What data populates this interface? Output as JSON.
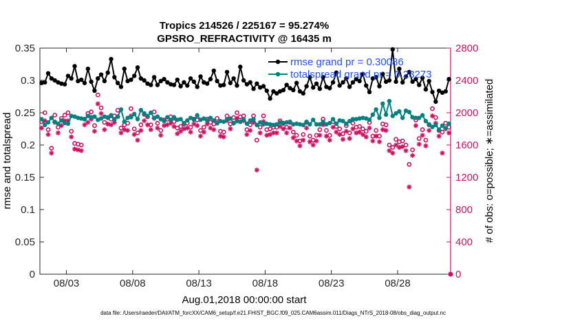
{
  "chart_data": {
    "type": "line",
    "title_line1": "Tropics 214526 / 225167 = 95.274%",
    "title_line2": "GPSRO_REFRACTIVITY @ 16435 m",
    "xlabel": "Aug.01,2018 00:00:00 start",
    "ylabel_left": "rmse and totalspread",
    "ylabel_right": "# of obs: o=possible; ∗=assimilated",
    "footnote": "data file: /Users/raeder/DAI/ATM_forcXX/CAM6_setup/f.e21.FHIST_BGC.f09_025.CAM6assim.011/Diags_NTrS_2018-08/obs_diag_output.nc",
    "x_ticks": [
      "08/03",
      "08/08",
      "08/13",
      "08/18",
      "08/23",
      "08/28"
    ],
    "x_tick_days": [
      3,
      8,
      13,
      18,
      23,
      28
    ],
    "xlim_days": [
      1.0,
      32.0
    ],
    "ylim_left": [
      0,
      0.35
    ],
    "y_ticks_left": [
      "0",
      "0.05",
      "0.1",
      "0.15",
      "0.2",
      "0.25",
      "0.3",
      "0.35"
    ],
    "y_tick_values_left": [
      0,
      0.05,
      0.1,
      0.15,
      0.2,
      0.25,
      0.3,
      0.35
    ],
    "ylim_right": [
      0,
      2800
    ],
    "y_ticks_right": [
      "0",
      "400",
      "800",
      "1200",
      "1600",
      "2000",
      "2400",
      "2800"
    ],
    "y_tick_values_right": [
      0,
      400,
      800,
      1200,
      1600,
      2000,
      2400,
      2800
    ],
    "legend": {
      "placement": "top-right",
      "entries": [
        "rmse grand pr = 0.30086",
        "totalspread grand pr = 0.23273"
      ]
    },
    "colors": {
      "rmse": "#000000",
      "spread": "#008080",
      "obs": "#cc1060",
      "legend_text": "#1f4fff",
      "axis": "#262626"
    },
    "series": [
      {
        "name": "rmse",
        "axis": "left",
        "x": [
          1.125,
          1.375,
          1.625,
          1.875,
          2.125,
          2.375,
          2.625,
          2.875,
          3.125,
          3.375,
          3.625,
          3.875,
          4.125,
          4.375,
          4.625,
          4.875,
          5.125,
          5.375,
          5.625,
          5.875,
          6.125,
          6.375,
          6.625,
          6.875,
          7.125,
          7.375,
          7.625,
          7.875,
          8.125,
          8.375,
          8.625,
          8.875,
          9.125,
          9.375,
          9.625,
          9.875,
          10.125,
          10.375,
          10.625,
          10.875,
          11.125,
          11.375,
          11.625,
          11.875,
          12.125,
          12.375,
          12.625,
          12.875,
          13.125,
          13.375,
          13.625,
          13.875,
          14.125,
          14.375,
          14.625,
          14.875,
          15.125,
          15.375,
          15.625,
          15.875,
          16.125,
          16.375,
          16.625,
          16.875,
          17.125,
          17.375,
          17.625,
          17.875,
          18.125,
          18.375,
          18.625,
          18.875,
          19.125,
          19.375,
          19.625,
          19.875,
          20.125,
          20.375,
          20.625,
          20.875,
          21.125,
          21.375,
          21.625,
          21.875,
          22.125,
          22.375,
          22.625,
          22.875,
          23.125,
          23.375,
          23.625,
          23.875,
          24.125,
          24.375,
          24.625,
          24.875,
          25.125,
          25.375,
          25.625,
          25.875,
          26.125,
          26.375,
          26.625,
          26.875,
          27.125,
          27.375,
          27.625,
          27.875,
          28.125,
          28.375,
          28.625,
          28.875,
          29.125,
          29.375,
          29.625,
          29.875,
          30.125,
          30.375,
          30.625,
          30.875,
          31.125,
          31.375,
          31.625,
          31.875
        ],
        "values": [
          0.296,
          0.297,
          0.311,
          0.303,
          0.3,
          0.297,
          0.295,
          0.294,
          0.307,
          0.303,
          0.322,
          0.299,
          0.301,
          0.296,
          0.318,
          0.298,
          0.284,
          0.303,
          0.309,
          0.299,
          0.312,
          0.333,
          0.305,
          0.296,
          0.29,
          0.318,
          0.299,
          0.301,
          0.307,
          0.32,
          0.303,
          0.3,
          0.295,
          0.293,
          0.305,
          0.293,
          0.299,
          0.302,
          0.297,
          0.294,
          0.293,
          0.301,
          0.291,
          0.297,
          0.292,
          0.303,
          0.298,
          0.29,
          0.306,
          0.297,
          0.295,
          0.302,
          0.315,
          0.299,
          0.292,
          0.293,
          0.313,
          0.296,
          0.303,
          0.292,
          0.321,
          0.3,
          0.294,
          0.297,
          0.287,
          0.295,
          0.289,
          0.291,
          0.284,
          0.272,
          0.283,
          0.28,
          0.283,
          0.285,
          0.293,
          0.288,
          0.285,
          0.296,
          0.283,
          0.28,
          0.291,
          0.305,
          0.289,
          0.295,
          0.287,
          0.305,
          0.29,
          0.288,
          0.297,
          0.312,
          0.292,
          0.297,
          0.303,
          0.29,
          0.297,
          0.302,
          0.299,
          0.31,
          0.292,
          0.282,
          0.303,
          0.305,
          0.291,
          0.31,
          0.298,
          0.3,
          0.348,
          0.298,
          0.318,
          0.297,
          0.306,
          0.313,
          0.298,
          0.302,
          0.293,
          0.304,
          0.286,
          0.299,
          0.282,
          0.267,
          0.284,
          0.281,
          0.283,
          0.302
        ]
      },
      {
        "name": "totalspread",
        "axis": "left",
        "x": [
          1.125,
          1.375,
          1.625,
          1.875,
          2.125,
          2.375,
          2.625,
          2.875,
          3.125,
          3.375,
          3.625,
          3.875,
          4.125,
          4.375,
          4.625,
          4.875,
          5.125,
          5.375,
          5.625,
          5.875,
          6.125,
          6.375,
          6.625,
          6.875,
          7.125,
          7.375,
          7.625,
          7.875,
          8.125,
          8.375,
          8.625,
          8.875,
          9.125,
          9.375,
          9.625,
          9.875,
          10.125,
          10.375,
          10.625,
          10.875,
          11.125,
          11.375,
          11.625,
          11.875,
          12.125,
          12.375,
          12.625,
          12.875,
          13.125,
          13.375,
          13.625,
          13.875,
          14.125,
          14.375,
          14.625,
          14.875,
          15.125,
          15.375,
          15.625,
          15.875,
          16.125,
          16.375,
          16.625,
          16.875,
          17.125,
          17.375,
          17.625,
          17.875,
          18.125,
          18.375,
          18.625,
          18.875,
          19.125,
          19.375,
          19.625,
          19.875,
          20.125,
          20.375,
          20.625,
          20.875,
          21.125,
          21.375,
          21.625,
          21.875,
          22.125,
          22.375,
          22.625,
          22.875,
          23.125,
          23.375,
          23.625,
          23.875,
          24.125,
          24.375,
          24.625,
          24.875,
          25.125,
          25.375,
          25.625,
          25.875,
          26.125,
          26.375,
          26.625,
          26.875,
          27.125,
          27.375,
          27.625,
          27.875,
          28.125,
          28.375,
          28.625,
          28.875,
          29.125,
          29.375,
          29.625,
          29.875,
          30.125,
          30.375,
          30.625,
          30.875,
          31.125,
          31.375,
          31.625,
          31.875
        ],
        "values": [
          0.24,
          0.231,
          0.235,
          0.242,
          0.236,
          0.233,
          0.238,
          0.234,
          0.233,
          0.245,
          0.244,
          0.242,
          0.241,
          0.24,
          0.245,
          0.243,
          0.244,
          0.239,
          0.241,
          0.244,
          0.242,
          0.246,
          0.239,
          0.244,
          0.255,
          0.236,
          0.242,
          0.243,
          0.248,
          0.24,
          0.254,
          0.249,
          0.245,
          0.25,
          0.242,
          0.244,
          0.24,
          0.237,
          0.243,
          0.239,
          0.243,
          0.239,
          0.24,
          0.234,
          0.238,
          0.242,
          0.239,
          0.246,
          0.239,
          0.241,
          0.238,
          0.242,
          0.238,
          0.234,
          0.237,
          0.236,
          0.24,
          0.241,
          0.234,
          0.237,
          0.236,
          0.24,
          0.233,
          0.238,
          0.24,
          0.231,
          0.235,
          0.232,
          0.233,
          0.232,
          0.231,
          0.232,
          0.235,
          0.233,
          0.235,
          0.236,
          0.232,
          0.233,
          0.232,
          0.231,
          0.236,
          0.232,
          0.239,
          0.232,
          0.232,
          0.236,
          0.232,
          0.234,
          0.24,
          0.233,
          0.238,
          0.237,
          0.233,
          0.237,
          0.24,
          0.24,
          0.241,
          0.242,
          0.241,
          0.239,
          0.247,
          0.255,
          0.242,
          0.264,
          0.247,
          0.268,
          0.245,
          0.249,
          0.252,
          0.242,
          0.253,
          0.251,
          0.243,
          0.242,
          0.242,
          0.246,
          0.237,
          0.232,
          0.228,
          0.231,
          0.224,
          0.23,
          0.226,
          0.233
        ]
      },
      {
        "name": "obs possible",
        "axis": "right",
        "marker": "o",
        "x": [
          1.125,
          1.375,
          1.625,
          1.875,
          2.125,
          2.375,
          2.625,
          2.875,
          3.125,
          3.375,
          3.625,
          3.875,
          4.125,
          4.375,
          4.625,
          4.875,
          5.125,
          5.375,
          5.625,
          5.875,
          6.125,
          6.375,
          6.625,
          6.875,
          7.125,
          7.375,
          7.625,
          7.875,
          8.125,
          8.375,
          8.625,
          8.875,
          9.125,
          9.375,
          9.625,
          9.875,
          10.125,
          10.375,
          10.625,
          10.875,
          11.125,
          11.375,
          11.625,
          11.875,
          12.125,
          12.375,
          12.625,
          12.875,
          13.125,
          13.375,
          13.625,
          13.875,
          14.125,
          14.375,
          14.625,
          14.875,
          15.125,
          15.375,
          15.625,
          15.875,
          16.125,
          16.375,
          16.625,
          16.875,
          17.125,
          17.375,
          17.625,
          17.875,
          18.125,
          18.375,
          18.625,
          18.875,
          19.125,
          19.375,
          19.625,
          19.875,
          20.125,
          20.375,
          20.625,
          20.875,
          21.125,
          21.375,
          21.625,
          21.875,
          22.125,
          22.375,
          22.625,
          22.875,
          23.125,
          23.375,
          23.625,
          23.875,
          24.125,
          24.375,
          24.625,
          24.875,
          25.125,
          25.375,
          25.625,
          25.875,
          26.125,
          26.375,
          26.625,
          26.875,
          27.125,
          27.375,
          27.625,
          27.875,
          28.125,
          28.375,
          28.625,
          28.875,
          29.125,
          29.375,
          29.625,
          29.875,
          30.125,
          30.375,
          30.625,
          30.875,
          31.125,
          31.375,
          31.625,
          31.875
        ],
        "values": [
          1890,
          2000,
          1790,
          1560,
          1970,
          1820,
          1930,
          1970,
          2000,
          1770,
          1620,
          1610,
          1600,
          1920,
          1990,
          2010,
          1840,
          2220,
          2060,
          1880,
          1940,
          1920,
          1960,
          2030,
          1810,
          1850,
          1870,
          2050,
          1800,
          1750,
          1850,
          1980,
          1950,
          1850,
          2010,
          1870,
          1780,
          1910,
          1920,
          1950,
          1890,
          1810,
          1830,
          1860,
          1870,
          1820,
          1920,
          1910,
          1780,
          1820,
          1920,
          1880,
          1860,
          1930,
          1770,
          1760,
          1960,
          1860,
          1940,
          2000,
          1950,
          1960,
          1790,
          1850,
          1960,
          1660,
          1820,
          1960,
          1790,
          1800,
          1820,
          1820,
          1900,
          1870,
          1820,
          1880,
          1760,
          1720,
          1650,
          1730,
          1880,
          1710,
          1660,
          1720,
          1790,
          1920,
          1780,
          1720,
          1890,
          1830,
          1800,
          1740,
          1840,
          1750,
          1870,
          1820,
          1830,
          1800,
          1770,
          1880,
          1710,
          1780,
          1710,
          1860,
          1850,
          1600,
          1570,
          1670,
          1640,
          1650,
          1600,
          1360,
          1540,
          1910,
          1680,
          1790,
          1660,
          1850,
          2050,
          1940,
          1780,
          1760,
          1870,
          1820
        ]
      },
      {
        "name": "obs assimilated",
        "axis": "right",
        "marker": "*",
        "x": [
          1.125,
          1.375,
          1.625,
          1.875,
          2.125,
          2.375,
          2.625,
          2.875,
          3.125,
          3.375,
          3.625,
          3.875,
          4.125,
          4.375,
          4.625,
          4.875,
          5.125,
          5.375,
          5.625,
          5.875,
          6.125,
          6.375,
          6.625,
          6.875,
          7.125,
          7.375,
          7.625,
          7.875,
          8.125,
          8.375,
          8.625,
          8.875,
          9.125,
          9.375,
          9.625,
          9.875,
          10.125,
          10.375,
          10.625,
          10.875,
          11.125,
          11.375,
          11.625,
          11.875,
          12.125,
          12.375,
          12.625,
          12.875,
          13.125,
          13.375,
          13.625,
          13.875,
          14.125,
          14.375,
          14.625,
          14.875,
          15.125,
          15.375,
          15.625,
          15.875,
          16.125,
          16.375,
          16.625,
          16.875,
          17.125,
          17.375,
          17.625,
          17.875,
          18.125,
          18.375,
          18.625,
          18.875,
          19.125,
          19.375,
          19.625,
          19.875,
          20.125,
          20.375,
          20.625,
          20.875,
          21.125,
          21.375,
          21.625,
          21.875,
          22.125,
          22.375,
          22.625,
          22.875,
          23.125,
          23.375,
          23.625,
          23.875,
          24.125,
          24.375,
          24.625,
          24.875,
          25.125,
          25.375,
          25.625,
          25.875,
          26.125,
          26.375,
          26.625,
          26.875,
          27.125,
          27.375,
          27.625,
          27.875,
          28.125,
          28.375,
          28.625,
          28.875,
          29.125,
          29.375,
          29.625,
          29.875,
          30.125,
          30.375,
          30.625,
          30.875,
          31.125,
          31.375,
          31.625,
          31.875
        ],
        "values": [
          1810,
          1900,
          1730,
          1500,
          1880,
          1750,
          1840,
          1900,
          1900,
          1700,
          1550,
          1540,
          1530,
          1850,
          1880,
          1920,
          1770,
          2110,
          1990,
          1790,
          1860,
          1850,
          1880,
          1950,
          1750,
          1790,
          1780,
          1960,
          1730,
          1660,
          1780,
          1900,
          1850,
          1790,
          1930,
          1810,
          1720,
          1840,
          1850,
          1870,
          1830,
          1740,
          1770,
          1800,
          1810,
          1760,
          1860,
          1840,
          1710,
          1760,
          1860,
          1810,
          1790,
          1870,
          1710,
          1700,
          1900,
          1800,
          1870,
          1930,
          1890,
          1900,
          1730,
          1780,
          1880,
          1290,
          1750,
          1890,
          1720,
          1730,
          1750,
          1750,
          1830,
          1800,
          1750,
          1810,
          1690,
          1650,
          1590,
          1660,
          1810,
          1640,
          1600,
          1650,
          1720,
          1850,
          1710,
          1660,
          1820,
          1760,
          1730,
          1670,
          1770,
          1680,
          1800,
          1750,
          1760,
          1730,
          1700,
          1810,
          1650,
          1710,
          1640,
          1790,
          1780,
          1530,
          1500,
          1600,
          1570,
          1580,
          1530,
          1080,
          1470,
          1840,
          1610,
          1720,
          1590,
          1780,
          1960,
          1870,
          1710,
          1500,
          1800,
          1750
        ]
      }
    ]
  }
}
